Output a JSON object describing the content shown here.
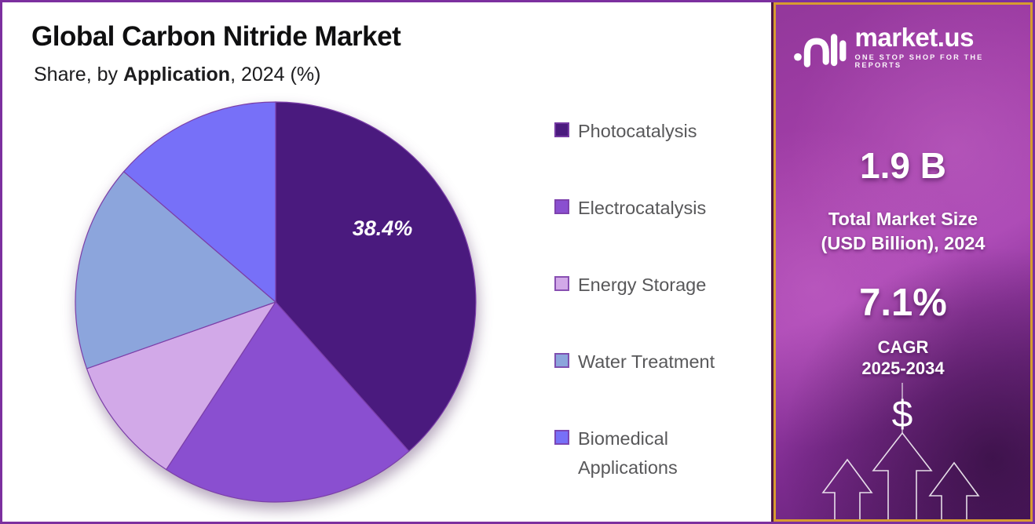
{
  "page": {
    "background": "#ffffff",
    "border_color": "#7c2f9f"
  },
  "header": {
    "title": "Global Carbon Nitride Market",
    "subtitle_prefix": "Share, by ",
    "subtitle_segment": "Application",
    "subtitle_suffix": ", 2024 (%)"
  },
  "chart_data": {
    "type": "pie",
    "title": "Global Carbon Nitride Market",
    "subtitle": "Share, by Application, 2024 (%)",
    "value_unit": "%",
    "start_angle_deg": 0,
    "direction": "clockwise",
    "legend_position": "right",
    "slice_border_color": "#7b3fa8",
    "legend_marker_border_color": "#7b3fa8",
    "label_text_color": "#ffffff",
    "slices": [
      {
        "label": "Photocatalysis",
        "value": 38.4,
        "color": "#4a1a7e",
        "value_label": "38.4%",
        "value_is_labeled_on_chart": true
      },
      {
        "label": "Electrocatalysis",
        "value": 20.8,
        "color": "#8a4fd0",
        "value_estimated_from_angle": true
      },
      {
        "label": "Energy Storage",
        "value": 10.4,
        "color": "#d2a9e8",
        "value_estimated_from_angle": true
      },
      {
        "label": "Water Treatment",
        "value": 16.7,
        "color": "#8ca5dc",
        "value_estimated_from_angle": true
      },
      {
        "label": "Biomedical Applications",
        "value": 13.7,
        "color": "#7770f8",
        "value_estimated_from_angle": true
      }
    ]
  },
  "sidebar": {
    "brand": {
      "name": "market.us",
      "tagline": "ONE STOP SHOP FOR THE REPORTS"
    },
    "stats": [
      {
        "value": "1.9 B",
        "label_line1": "Total Market Size",
        "label_line2": "(USD Billion), 2024"
      },
      {
        "value": "7.1%",
        "label_line1": "CAGR",
        "label_line2": "2025-2034"
      }
    ],
    "dollar_glyph": "$",
    "border_color": "#d79b2f"
  }
}
